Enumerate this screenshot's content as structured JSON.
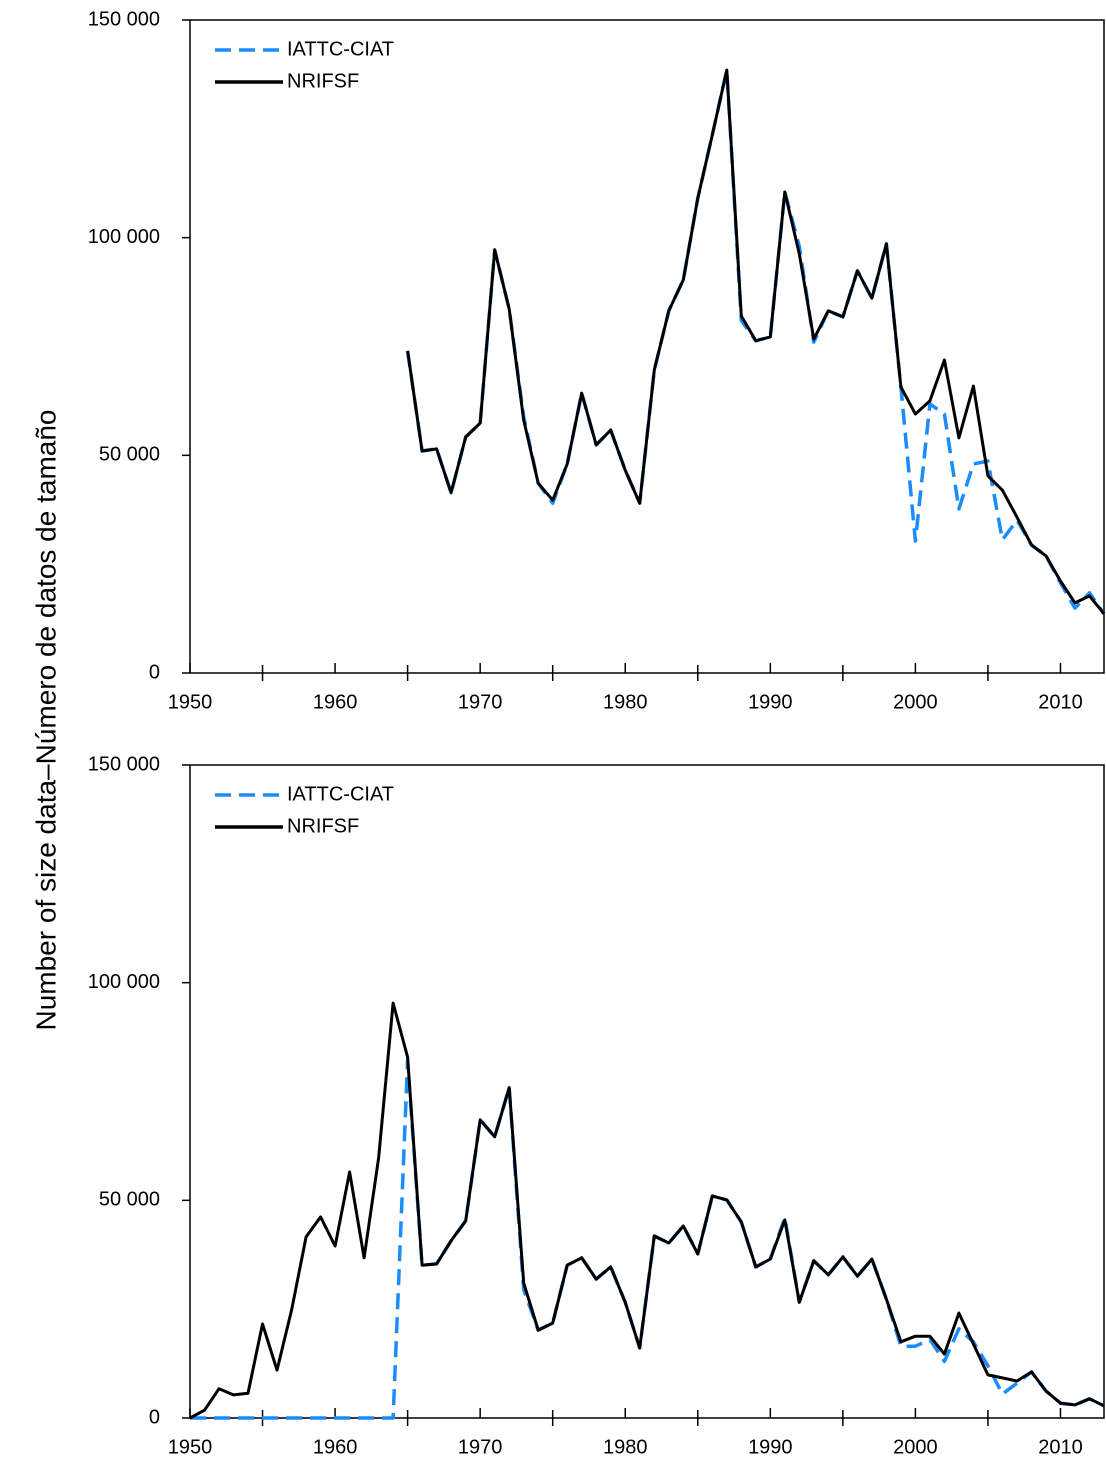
{
  "y_axis_label": "Number of size data–Número de datos de tamaño",
  "chart_data": [
    {
      "type": "line",
      "x": [
        1965,
        1966,
        1967,
        1968,
        1969,
        1970,
        1971,
        1972,
        1973,
        1974,
        1975,
        1976,
        1977,
        1978,
        1979,
        1980,
        1981,
        1982,
        1983,
        1984,
        1985,
        1986,
        1987,
        1988,
        1989,
        1990,
        1991,
        1992,
        1993,
        1994,
        1995,
        1996,
        1997,
        1998,
        1999,
        2000,
        2001,
        2002,
        2003,
        2004,
        2005,
        2006,
        2007,
        2008,
        2009,
        2010,
        2011,
        2012,
        2013
      ],
      "series": [
        {
          "name": "IATTC-CIAT",
          "color": "#1a8cff",
          "dashed": true,
          "values": [
            74000,
            51000,
            51500,
            41400,
            54200,
            57400,
            97200,
            83600,
            58800,
            43600,
            39000,
            48000,
            64300,
            52400,
            55800,
            46600,
            39000,
            69600,
            83200,
            90300,
            109100,
            123600,
            138500,
            81000,
            76300,
            77200,
            110500,
            98000,
            76000,
            83200,
            81800,
            92400,
            86100,
            98600,
            65700,
            30300,
            61800,
            59500,
            37700,
            48000,
            48700,
            30600,
            35100,
            29400,
            26900,
            20700,
            14900,
            18400,
            13600
          ]
        },
        {
          "name": "NRIFSF",
          "color": "#000000",
          "dashed": false,
          "values": [
            74000,
            51000,
            51500,
            41400,
            54200,
            57400,
            97200,
            83600,
            58100,
            43600,
            39700,
            48000,
            64300,
            52400,
            55800,
            46600,
            39000,
            69600,
            83200,
            90300,
            109100,
            123600,
            138500,
            82000,
            76300,
            77200,
            110500,
            96300,
            76700,
            83200,
            81800,
            92400,
            86100,
            98600,
            65700,
            59500,
            62500,
            71900,
            54000,
            65900,
            45300,
            42000,
            35800,
            29400,
            26900,
            21100,
            16100,
            17700,
            13600
          ]
        }
      ],
      "xlim": [
        1950,
        2013
      ],
      "xticks": [
        1950,
        1960,
        1970,
        1980,
        1990,
        2000,
        2010
      ],
      "xminorticks": [
        1955,
        1965,
        1975,
        1985,
        1995,
        2005
      ],
      "ylim": [
        0,
        150000
      ],
      "yticks": [
        {
          "value": 0,
          "label": "0"
        },
        {
          "value": 50000,
          "label": "50 000"
        },
        {
          "value": 100000,
          "label": "100 000"
        },
        {
          "value": 150000,
          "label": "150 000"
        }
      ],
      "legend": "upper left"
    },
    {
      "type": "line",
      "x": [
        1950,
        1951,
        1952,
        1953,
        1954,
        1955,
        1956,
        1957,
        1958,
        1959,
        1960,
        1961,
        1962,
        1963,
        1964,
        1965,
        1966,
        1967,
        1968,
        1969,
        1970,
        1971,
        1972,
        1973,
        1974,
        1975,
        1976,
        1977,
        1978,
        1979,
        1980,
        1981,
        1982,
        1983,
        1984,
        1985,
        1986,
        1987,
        1988,
        1989,
        1990,
        1991,
        1992,
        1993,
        1994,
        1995,
        1996,
        1997,
        1998,
        1999,
        2000,
        2001,
        2002,
        2003,
        2004,
        2005,
        2006,
        2007,
        2008,
        2009,
        2010,
        2011,
        2012,
        2013
      ],
      "series": [
        {
          "name": "IATTC-CIAT",
          "color": "#1a8cff",
          "dashed": true,
          "values": [
            0,
            0,
            0,
            0,
            0,
            0,
            0,
            0,
            0,
            0,
            0,
            0,
            0,
            0,
            0,
            82000,
            35100,
            35400,
            40700,
            45300,
            68500,
            64600,
            75900,
            29500,
            20200,
            21800,
            35100,
            36800,
            31900,
            34700,
            26600,
            16100,
            41800,
            40200,
            44100,
            37700,
            51000,
            50100,
            45000,
            34700,
            36500,
            46000,
            26600,
            36100,
            32900,
            37000,
            32600,
            36500,
            27300,
            16500,
            16500,
            18000,
            13000,
            20500,
            17500,
            12000,
            5500,
            8000,
            10600,
            6200,
            3400,
            3000,
            4400,
            2800
          ]
        },
        {
          "name": "NRIFSF",
          "color": "#000000",
          "dashed": false,
          "values": [
            0,
            1800,
            6700,
            5300,
            5700,
            21600,
            11000,
            24800,
            41600,
            46200,
            39500,
            56500,
            36800,
            59700,
            95300,
            82900,
            35100,
            35400,
            40700,
            45300,
            68500,
            64600,
            75900,
            31000,
            20200,
            21800,
            35100,
            36800,
            31900,
            34700,
            26600,
            16100,
            41800,
            40200,
            44100,
            37700,
            51000,
            50100,
            45000,
            34700,
            36500,
            45500,
            26600,
            36100,
            32900,
            37000,
            32600,
            36500,
            27300,
            17500,
            18800,
            18800,
            14700,
            24100,
            17000,
            9900,
            9200,
            8500,
            10600,
            6200,
            3400,
            3000,
            4400,
            2800
          ]
        }
      ],
      "xlim": [
        1950,
        2013
      ],
      "xticks": [
        1950,
        1960,
        1970,
        1980,
        1990,
        2000,
        2010
      ],
      "xminorticks": [
        1955,
        1965,
        1975,
        1985,
        1995,
        2005
      ],
      "ylim": [
        0,
        150000
      ],
      "yticks": [
        {
          "value": 0,
          "label": "0"
        },
        {
          "value": 50000,
          "label": "50 000"
        },
        {
          "value": 100000,
          "label": "100 000"
        },
        {
          "value": 150000,
          "label": "150 000"
        }
      ],
      "legend": "upper left"
    }
  ]
}
